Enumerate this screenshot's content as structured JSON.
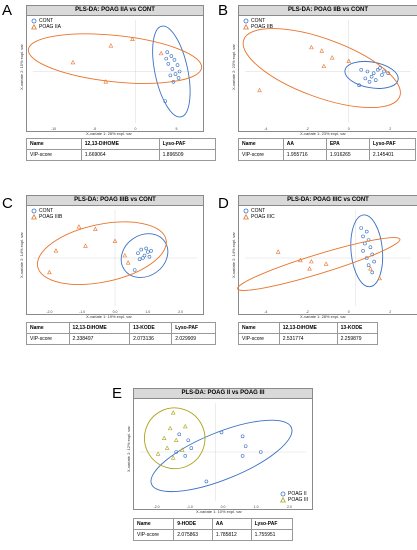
{
  "colors": {
    "cont": "#3a72c4",
    "poag": "#e8742b",
    "poag3": "#b0a21a",
    "title_bg": "#d9d9d9"
  },
  "chart_data": [
    {
      "panel": "A",
      "type": "scatter",
      "title": "PLS-DA: POAG IIA vs CONT",
      "xlabel": "X-variate 1: 28% expl. var",
      "ylabel": "X-variate 2: 15% expl. var",
      "xticks": [
        "-10",
        "-5",
        "0",
        "5"
      ],
      "xlim": [
        -10,
        6
      ],
      "ylim": [
        -4,
        4
      ],
      "legend_position": "top-left",
      "series": [
        {
          "name": "CONT",
          "marker": "circle",
          "color": "#3a72c4",
          "points": [
            [
              3.1,
              1.5
            ],
            [
              3.5,
              1.2
            ],
            [
              3.8,
              0.9
            ],
            [
              3.2,
              0.6
            ],
            [
              4.1,
              0.5
            ],
            [
              3.6,
              0.2
            ],
            [
              4.3,
              0.0
            ],
            [
              3.9,
              -0.2
            ],
            [
              3.4,
              -0.3
            ],
            [
              4.2,
              -0.5
            ],
            [
              3.7,
              -0.8
            ],
            [
              3.0,
              1.0
            ],
            [
              2.9,
              -2.3
            ]
          ],
          "ellipse": {
            "cx": 3.5,
            "cy": 0,
            "rx": 1.6,
            "ry": 3.6,
            "rot": 12
          }
        },
        {
          "name": "POAG IIA",
          "marker": "triangle",
          "color": "#e8742b",
          "points": [
            [
              -2.4,
              2.0
            ],
            [
              -0.3,
              2.5
            ],
            [
              -6.1,
              0.7
            ],
            [
              -2.9,
              -0.8
            ],
            [
              2.5,
              1.4
            ]
          ],
          "ellipse": {
            "cx": -2,
            "cy": 1.0,
            "rx": 8.5,
            "ry": 1.8,
            "rot": -6
          }
        }
      ],
      "table": {
        "row_head": "Name",
        "row_value": "VIP-score",
        "cols": [
          "12,13-DiHOME",
          "Lyso-PAF"
        ],
        "values": [
          "1.669064",
          "1.896509"
        ]
      }
    },
    {
      "panel": "B",
      "type": "scatter",
      "title": "PLS-DA: POAG IIB vs CONT",
      "xlabel": "X-variate 1: 23% expl. var",
      "ylabel": "X-variate 2: 23% expl. var",
      "xticks": [
        "-4",
        "-2",
        "0",
        "2"
      ],
      "xlim": [
        -5,
        3
      ],
      "ylim": [
        -3,
        3
      ],
      "legend_position": "top-left",
      "series": [
        {
          "name": "CONT",
          "marker": "circle",
          "color": "#3a72c4",
          "points": [
            [
              0.6,
              0.1
            ],
            [
              0.9,
              0.0
            ],
            [
              1.2,
              -0.1
            ],
            [
              1.4,
              0.1
            ],
            [
              1.5,
              0.2
            ],
            [
              1.1,
              -0.3
            ],
            [
              0.8,
              -0.4
            ],
            [
              1.6,
              -0.2
            ],
            [
              1.3,
              -0.5
            ],
            [
              0.5,
              -0.8
            ],
            [
              1.7,
              0.0
            ],
            [
              1.0,
              -0.6
            ],
            [
              1.9,
              -0.1
            ]
          ],
          "ellipse": {
            "cx": 1.1,
            "cy": -0.2,
            "rx": 1.3,
            "ry": 0.75,
            "rot": -10
          }
        },
        {
          "name": "POAG IIB",
          "marker": "triangle",
          "color": "#e8742b",
          "points": [
            [
              -1.8,
              1.4
            ],
            [
              -1.3,
              1.2
            ],
            [
              -0.8,
              0.8
            ],
            [
              0.0,
              0.6
            ],
            [
              -1.2,
              0.3
            ],
            [
              -4.3,
              -1.1
            ]
          ],
          "ellipse": {
            "cx": -1.3,
            "cy": 0.2,
            "rx": 4.0,
            "ry": 1.7,
            "rot": -20
          }
        }
      ],
      "table": {
        "row_head": "Name",
        "row_value": "VIP-score",
        "cols": [
          "AA",
          "EPA",
          "Lyso-PAF"
        ],
        "values": [
          "1.955716",
          "1.916265",
          "2.145401"
        ]
      }
    },
    {
      "panel": "C",
      "type": "scatter",
      "title": "PLS-DA: POAG IIIB vs CONT",
      "xlabel": "X-variate 1: 19% expl. var",
      "ylabel": "X-variate 2: 14% expl. var",
      "xticks": [
        "-2.0",
        "-1.0",
        "0.0",
        "1.0",
        "2.0"
      ],
      "xlim": [
        -2.5,
        2.5
      ],
      "ylim": [
        -2,
        2
      ],
      "legend_position": "top-left",
      "series": [
        {
          "name": "CONT",
          "marker": "circle",
          "color": "#3a72c4",
          "points": [
            [
              0.7,
              0.2
            ],
            [
              0.8,
              0.35
            ],
            [
              0.9,
              0.1
            ],
            [
              1.0,
              0.25
            ],
            [
              0.85,
              0.0
            ],
            [
              1.05,
              0.05
            ],
            [
              0.75,
              -0.05
            ],
            [
              0.95,
              0.4
            ],
            [
              1.1,
              0.3
            ],
            [
              0.6,
              -0.5
            ]
          ],
          "ellipse": {
            "cx": 0.9,
            "cy": 0.1,
            "rx": 0.75,
            "ry": 0.85,
            "rot": 35
          }
        },
        {
          "name": "POAG IIIB",
          "marker": "triangle",
          "color": "#e8742b",
          "points": [
            [
              -1.1,
              1.3
            ],
            [
              -0.6,
              1.2
            ],
            [
              -0.9,
              0.5
            ],
            [
              -1.8,
              0.3
            ],
            [
              0.0,
              0.7
            ],
            [
              0.3,
              0.1
            ],
            [
              -2.0,
              -0.6
            ],
            [
              0.4,
              -0.2
            ]
          ],
          "ellipse": {
            "cx": -0.4,
            "cy": 0.2,
            "rx": 2.0,
            "ry": 1.2,
            "rot": 12
          }
        }
      ],
      "table": {
        "row_head": "Name",
        "row_value": "VIP-score",
        "cols": [
          "12,13-DiHOME",
          "13-KODE",
          "Lyso-PAF"
        ],
        "values": [
          "2.338497",
          "2.073136",
          "2.029909"
        ]
      }
    },
    {
      "panel": "D",
      "type": "scatter",
      "title": "PLS-DA: POAG IIIC vs CONT",
      "xlabel": "X-variate 1: 28% expl. var",
      "ylabel": "X-variate 2: 14% expl. var",
      "xticks": [
        "-4",
        "-2",
        "0",
        "2"
      ],
      "xlim": [
        -6,
        3
      ],
      "ylim": [
        -4,
        4
      ],
      "legend_position": "top-left",
      "series": [
        {
          "name": "CONT",
          "marker": "circle",
          "color": "#3a72c4",
          "points": [
            [
              0.3,
              2.5
            ],
            [
              0.6,
              2.2
            ],
            [
              0.4,
              1.8
            ],
            [
              0.7,
              1.5
            ],
            [
              0.5,
              1.2
            ],
            [
              0.8,
              0.9
            ],
            [
              0.4,
              0.6
            ],
            [
              0.9,
              0.3
            ],
            [
              0.6,
              0.0
            ],
            [
              1.0,
              -0.3
            ],
            [
              0.7,
              -0.6
            ],
            [
              0.9,
              -1.2
            ]
          ],
          "ellipse": {
            "cx": 0.6,
            "cy": 0.6,
            "rx": 0.85,
            "ry": 3.0,
            "rot": 5
          }
        },
        {
          "name": "POAG IIIC",
          "marker": "triangle",
          "color": "#e8742b",
          "points": [
            [
              -4.2,
              0.5
            ],
            [
              -3.0,
              -0.2
            ],
            [
              -2.4,
              -0.3
            ],
            [
              -2.5,
              -0.9
            ],
            [
              -1.6,
              -0.5
            ],
            [
              0.8,
              -0.9
            ],
            [
              1.3,
              -1.7
            ]
          ],
          "ellipse": {
            "cx": -2.0,
            "cy": -0.5,
            "rx": 4.6,
            "ry": 0.8,
            "rot": 17
          }
        }
      ],
      "table": {
        "row_head": "Name",
        "row_value": "VIP-score",
        "cols": [
          "12,13-DiHOME",
          "13-KODE"
        ],
        "values": [
          "2.531774",
          "2.259879"
        ]
      }
    },
    {
      "panel": "E",
      "type": "scatter",
      "title": "PLS-DA: POAG II vs POAG III",
      "xlabel": "X-variate 1: 10% expl. var",
      "ylabel": "X-variate 2: 12% expl. var",
      "xticks": [
        "-2.0",
        "-1.0",
        "0.0",
        "1.0",
        "2.0"
      ],
      "xlim": [
        -2.5,
        3
      ],
      "ylim": [
        -2.5,
        2.5
      ],
      "legend_position": "bottom-right",
      "series": [
        {
          "name": "POAG II",
          "marker": "circle",
          "color": "#3a72c4",
          "points": [
            [
              -1.2,
              0.9
            ],
            [
              -0.9,
              0.6
            ],
            [
              -0.8,
              0.2
            ],
            [
              -1.3,
              0.0
            ],
            [
              -1.0,
              -0.2
            ],
            [
              0.2,
              1.0
            ],
            [
              0.9,
              0.8
            ],
            [
              1.0,
              0.3
            ],
            [
              1.5,
              0.0
            ],
            [
              0.9,
              -0.2
            ],
            [
              -0.3,
              -1.5
            ]
          ],
          "ellipse": {
            "cx": 0.2,
            "cy": -0.2,
            "rx": 2.5,
            "ry": 1.2,
            "rot": 22
          }
        },
        {
          "name": "POAG III",
          "marker": "triangle",
          "color": "#b0a21a",
          "points": [
            [
              -1.4,
              2.0
            ],
            [
              -1.5,
              1.2
            ],
            [
              -1.0,
              1.3
            ],
            [
              -1.7,
              0.7
            ],
            [
              -1.3,
              0.6
            ],
            [
              -1.6,
              0.2
            ],
            [
              -1.1,
              0.1
            ],
            [
              -1.9,
              -0.1
            ],
            [
              -1.4,
              -0.3
            ]
          ],
          "ellipse": {
            "cx": -1.35,
            "cy": 0.7,
            "rx": 1.0,
            "ry": 1.55,
            "rot": 28
          }
        }
      ],
      "table": {
        "row_head": "Name",
        "row_value": "VIP-score",
        "cols": [
          "9-HODE",
          "AA",
          "Lyso-PAF"
        ],
        "values": [
          "2.075863",
          "1.785812",
          "1.755951"
        ]
      }
    }
  ]
}
